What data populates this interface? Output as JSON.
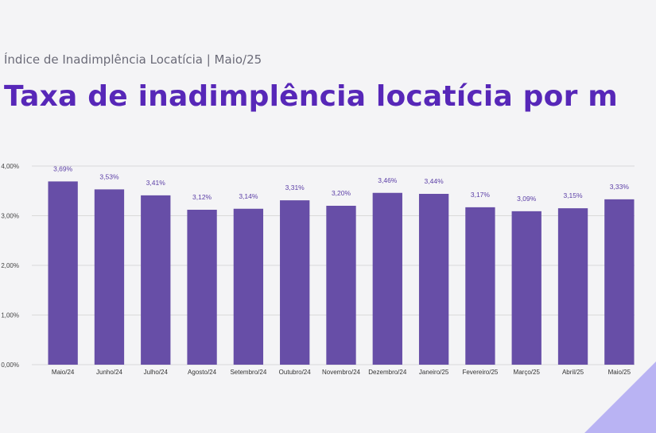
{
  "header": {
    "subtitle": "Índice de Inadimplência Locatícia | Maio/25",
    "title": "Taxa de inadimplência locatícia por m"
  },
  "colors": {
    "bar": "#674ea7",
    "title": "#5727b8",
    "grid": "#d9d9d9",
    "corner": "#b9b3f3"
  },
  "chart_data": {
    "type": "bar",
    "categories": [
      "Maio/24",
      "Junho/24",
      "Julho/24",
      "Agosto/24",
      "Setembro/24",
      "Outubro/24",
      "Novembro/24",
      "Dezembro/24",
      "Janeiro/25",
      "Fevereiro/25",
      "Março/25",
      "Abril/25",
      "Maio/25"
    ],
    "values": [
      3.69,
      3.53,
      3.41,
      3.12,
      3.14,
      3.31,
      3.2,
      3.46,
      3.44,
      3.17,
      3.09,
      3.15,
      3.33
    ],
    "value_labels": [
      "3,69%",
      "3,53%",
      "3,41%",
      "3,12%",
      "3,14%",
      "3,31%",
      "3,20%",
      "3,46%",
      "3,44%",
      "3,17%",
      "3,09%",
      "3,15%",
      "3,33%"
    ],
    "y_tick_values": [
      0,
      1,
      2,
      3,
      4
    ],
    "y_tick_labels": [
      "0,00%",
      "1,00%",
      "2,00%",
      "3,00%",
      "4,00%"
    ],
    "ylim": [
      0,
      4
    ],
    "grid": true,
    "legend": "none"
  }
}
